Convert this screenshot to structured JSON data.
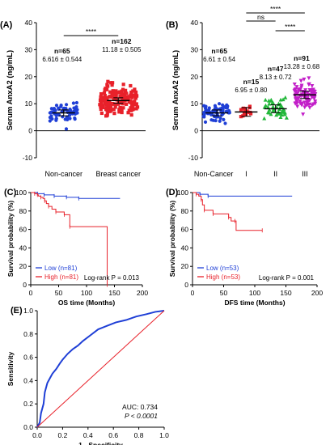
{
  "chart_data": [
    {
      "panel": "(A)",
      "type": "scatter",
      "ylabel": "Serum AnxA2 (ng/mL)",
      "ylim": [
        -10,
        40
      ],
      "yticks": [
        "-10",
        "0",
        "10",
        "20",
        "30",
        "40"
      ],
      "categories": [
        "Non-cancer",
        "Breast cancer"
      ],
      "groups": [
        {
          "label": "Non-cancer",
          "n_text": "n=65",
          "stat_text": "6.616 ± 0.544",
          "color": "#1f3fd6",
          "marker": "circle",
          "n": 65,
          "mean": 6.616,
          "sem": 0.544
        },
        {
          "label": "Breast cancer",
          "n_text": "n=162",
          "stat_text": "11.18 ± 0.505",
          "color": "#e8212a",
          "marker": "square",
          "n": 162,
          "mean": 11.18,
          "sem": 0.505
        }
      ],
      "significance": [
        {
          "from": 0,
          "to": 1,
          "label": "****"
        }
      ]
    },
    {
      "panel": "(B)",
      "type": "scatter",
      "ylabel": "Serum AnxA2 (ng/mL)",
      "ylim": [
        -10,
        40
      ],
      "yticks": [
        "-10",
        "0",
        "10",
        "20",
        "30",
        "40"
      ],
      "categories": [
        "Non-Cancer",
        "I",
        "II",
        "III"
      ],
      "groups": [
        {
          "label": "Non-Cancer",
          "n_text": "n=65",
          "stat_text": "6.61 ± 0.54",
          "color": "#1f3fd6",
          "marker": "circle",
          "n": 65,
          "mean": 6.61,
          "sem": 0.54
        },
        {
          "label": "I",
          "n_text": "n=15",
          "stat_text": "6.95 ± 0.80",
          "color": "#e8212a",
          "marker": "square",
          "n": 15,
          "mean": 6.95,
          "sem": 0.8
        },
        {
          "label": "II",
          "n_text": "n=47",
          "stat_text": "8.13 ± 0.72",
          "color": "#22b83a",
          "marker": "triangle",
          "n": 47,
          "mean": 8.13,
          "sem": 0.72
        },
        {
          "label": "III",
          "n_text": "n=91",
          "stat_text": "13.28 ± 0.68",
          "color": "#c21fc8",
          "marker": "triangle-down",
          "n": 91,
          "mean": 13.28,
          "sem": 0.68
        }
      ],
      "significance": [
        {
          "from": 1,
          "to": 3,
          "label": "****"
        },
        {
          "from": 1,
          "to": 2,
          "label": "ns"
        },
        {
          "from": 2,
          "to": 3,
          "label": "****"
        }
      ]
    },
    {
      "panel": "(C)",
      "type": "line",
      "xlabel": "OS time (Months)",
      "ylabel": "Survival probability (%)",
      "xlim": [
        0,
        200
      ],
      "ylim": [
        0,
        100
      ],
      "xticks": [
        "0",
        "50",
        "100",
        "150",
        "200"
      ],
      "yticks": [
        "0",
        "20",
        "40",
        "60",
        "80",
        "100"
      ],
      "legend": [
        "Low (n=81)",
        "High (n=81)"
      ],
      "annotation": "Log-rank P = 0.013",
      "series": [
        {
          "name": "Low (n=81)",
          "color": "#1f3fd6",
          "steps": [
            [
              0,
              100
            ],
            [
              8,
              100
            ],
            [
              12,
              98.8
            ],
            [
              20,
              98.8
            ],
            [
              24,
              97.5
            ],
            [
              38,
              97.5
            ],
            [
              42,
              96.2
            ],
            [
              60,
              96.2
            ],
            [
              64,
              94.9
            ],
            [
              82,
              94.9
            ],
            [
              86,
              93.6
            ],
            [
              160,
              93.6
            ]
          ]
        },
        {
          "name": "High (n=81)",
          "color": "#e8212a",
          "steps": [
            [
              0,
              100
            ],
            [
              5,
              100
            ],
            [
              7,
              98.8
            ],
            [
              10,
              98.8
            ],
            [
              12,
              97.5
            ],
            [
              14,
              96.2
            ],
            [
              18,
              94.9
            ],
            [
              22,
              93.6
            ],
            [
              25,
              91
            ],
            [
              28,
              88
            ],
            [
              32,
              85
            ],
            [
              38,
              82
            ],
            [
              45,
              79
            ],
            [
              55,
              79
            ],
            [
              60,
              76
            ],
            [
              68,
              76
            ],
            [
              70,
              63
            ],
            [
              135,
              63
            ],
            [
              137,
              0
            ]
          ]
        }
      ]
    },
    {
      "panel": "(D)",
      "type": "line",
      "xlabel": "DFS time (Months)",
      "ylabel": "Survival probability (%)",
      "xlim": [
        0,
        200
      ],
      "ylim": [
        0,
        100
      ],
      "xticks": [
        "0",
        "50",
        "100",
        "150",
        "200"
      ],
      "yticks": [
        "0",
        "20",
        "40",
        "60",
        "80",
        "100"
      ],
      "legend": [
        "Low (n=53)",
        "High (n=53)"
      ],
      "annotation": "Log-rank P = 0.001",
      "series": [
        {
          "name": "Low (n=53)",
          "color": "#1f3fd6",
          "steps": [
            [
              0,
              100
            ],
            [
              10,
              100
            ],
            [
              12,
              98.1
            ],
            [
              20,
              98.1
            ],
            [
              25,
              96.2
            ],
            [
              160,
              96.2
            ]
          ]
        },
        {
          "name": "High (n=53)",
          "color": "#e8212a",
          "steps": [
            [
              0,
              100
            ],
            [
              4,
              100
            ],
            [
              6,
              98.1
            ],
            [
              10,
              96.2
            ],
            [
              14,
              92.3
            ],
            [
              16,
              86.6
            ],
            [
              19,
              80.8
            ],
            [
              30,
              80.8
            ],
            [
              33,
              76.9
            ],
            [
              55,
              76.9
            ],
            [
              58,
              73
            ],
            [
              62,
              69.2
            ],
            [
              68,
              69.2
            ],
            [
              70,
              59
            ],
            [
              112,
              59
            ]
          ]
        }
      ]
    },
    {
      "panel": "(E)",
      "type": "line",
      "xlabel": "1 - Specificity",
      "ylabel": "Sensitivity",
      "xlim": [
        0,
        1
      ],
      "ylim": [
        0,
        1
      ],
      "xticks": [
        "0.0",
        "0.2",
        "0.4",
        "0.6",
        "0.8",
        "1.0"
      ],
      "yticks": [
        "0.0",
        "0.2",
        "0.4",
        "0.6",
        "0.8",
        "1.0"
      ],
      "annotation": "AUC: 0.734",
      "annotation2": "P < 0.0001",
      "series": [
        {
          "color": "#1f3fd6",
          "points": [
            [
              0,
              0
            ],
            [
              0.02,
              0.04
            ],
            [
              0.03,
              0.12
            ],
            [
              0.05,
              0.2
            ],
            [
              0.06,
              0.3
            ],
            [
              0.08,
              0.38
            ],
            [
              0.1,
              0.42
            ],
            [
              0.12,
              0.46
            ],
            [
              0.15,
              0.5
            ],
            [
              0.18,
              0.55
            ],
            [
              0.2,
              0.58
            ],
            [
              0.24,
              0.63
            ],
            [
              0.28,
              0.67
            ],
            [
              0.32,
              0.7
            ],
            [
              0.36,
              0.74
            ],
            [
              0.42,
              0.79
            ],
            [
              0.48,
              0.84
            ],
            [
              0.55,
              0.87
            ],
            [
              0.62,
              0.9
            ],
            [
              0.7,
              0.92
            ],
            [
              0.78,
              0.95
            ],
            [
              0.86,
              0.97
            ],
            [
              0.93,
              0.99
            ],
            [
              1,
              1
            ]
          ]
        },
        {
          "color": "#e8212a",
          "points": [
            [
              0,
              0
            ],
            [
              1,
              1
            ]
          ]
        }
      ]
    }
  ]
}
